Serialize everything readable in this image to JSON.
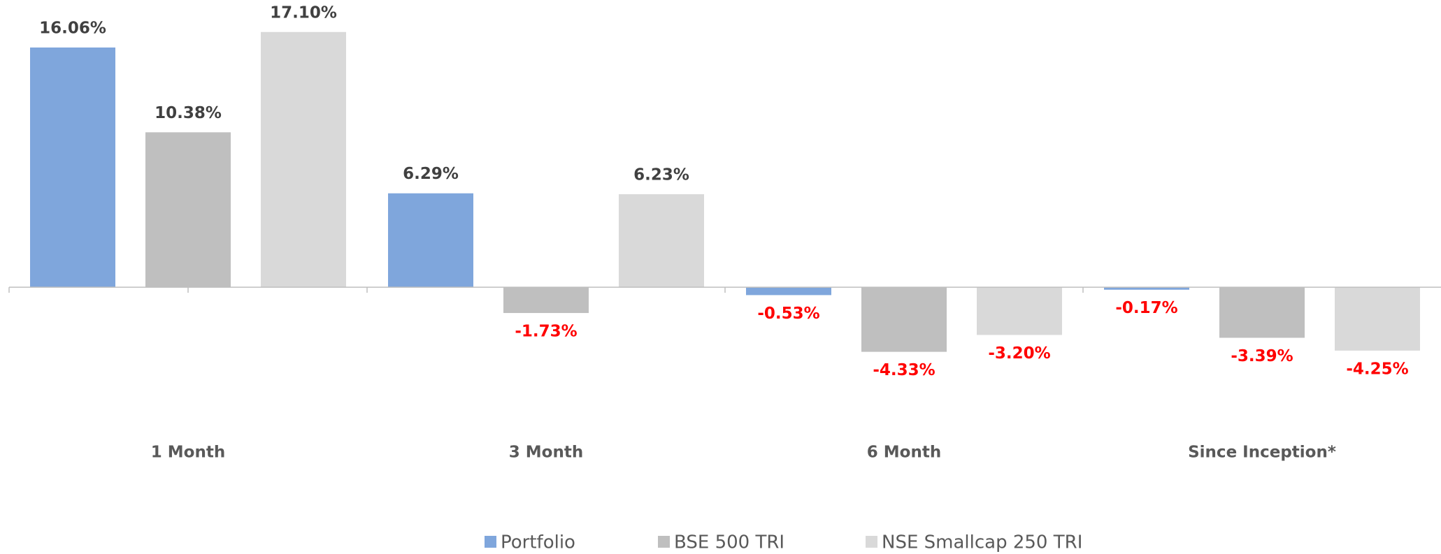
{
  "chart_data": {
    "type": "bar",
    "categories": [
      "1 Month",
      "3 Month",
      "6 Month",
      "Since Inception*"
    ],
    "series": [
      {
        "name": "Portfolio",
        "color": "#7fa6dc",
        "values": [
          16.06,
          6.29,
          -0.53,
          -0.17
        ],
        "value_labels": [
          "16.06%",
          "6.29%",
          "-0.53%",
          "-0.17%"
        ]
      },
      {
        "name": "BSE 500 TRI",
        "color": "#bfbfbf",
        "values": [
          10.38,
          -1.73,
          -4.33,
          -3.39
        ],
        "value_labels": [
          "10.38%",
          "-1.73%",
          "-4.33%",
          "-3.39%"
        ]
      },
      {
        "name": "NSE Smallcap 250 TRI",
        "color": "#d9d9d9",
        "values": [
          17.1,
          6.23,
          -3.2,
          -4.25
        ],
        "value_labels": [
          "17.10%",
          "6.23%",
          "-3.20%",
          "-4.25%"
        ]
      }
    ],
    "ylim": [
      -8,
      19
    ],
    "legend": "bottom"
  }
}
